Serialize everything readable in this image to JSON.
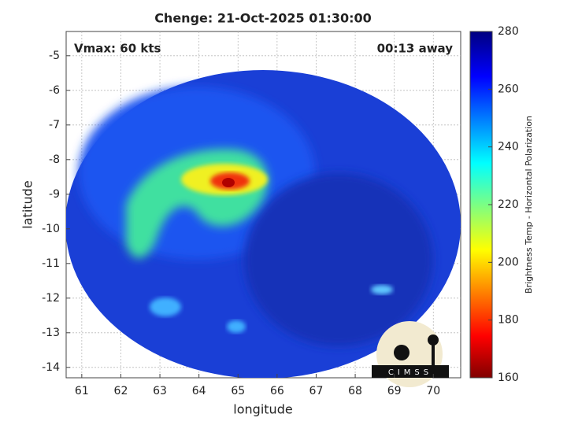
{
  "chart_data": {
    "type": "image",
    "title": "Chenge: 21-Oct-2025 01:30:00",
    "annotations": [
      "Vmax: 60 kts",
      "00:13 away"
    ],
    "xlabel": "longitude",
    "ylabel": "latitude",
    "xlim": [
      60.6,
      70.7
    ],
    "ylim": [
      -14.3,
      -4.3
    ],
    "xticks": [
      61,
      62,
      63,
      64,
      65,
      66,
      67,
      68,
      69,
      70
    ],
    "yticks": [
      -14,
      -13,
      -12,
      -11,
      -10,
      -9,
      -8,
      -7,
      -6,
      -5
    ],
    "grid": true,
    "colorbar": {
      "label": "Brightness Temp - Horizontal Polarization",
      "lim": [
        160,
        280
      ],
      "ticks": [
        160,
        180,
        200,
        220,
        240,
        260,
        280
      ]
    },
    "logo": "CIMSS"
  }
}
